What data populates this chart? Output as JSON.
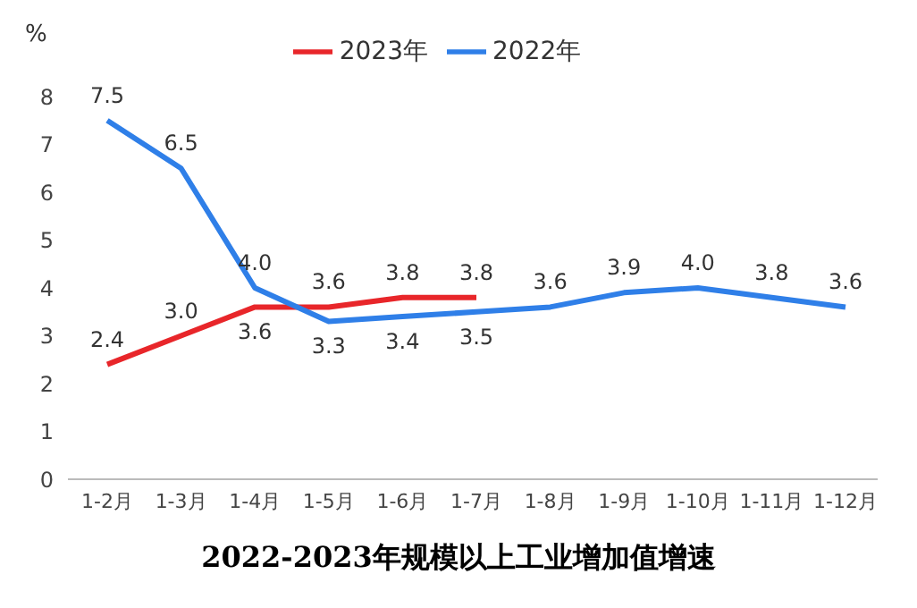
{
  "chart_data": {
    "type": "line",
    "title": "2022-2023年规模以上工业增加值增速",
    "ylabel": "%",
    "categories": [
      "1-2月",
      "1-3月",
      "1-4月",
      "1-5月",
      "1-6月",
      "1-7月",
      "1-8月",
      "1-9月",
      "1-10月",
      "1-11月",
      "1-12月"
    ],
    "series": [
      {
        "name": "2023年",
        "color": "#e8262a",
        "values": [
          2.4,
          3.0,
          3.6,
          3.6,
          3.8,
          3.8,
          null,
          null,
          null,
          null,
          null
        ],
        "value_labels": [
          "2.4",
          "3.0",
          "3.6",
          "3.6",
          "3.8",
          "3.8",
          null,
          null,
          null,
          null,
          null
        ]
      },
      {
        "name": "2022年",
        "color": "#2f7fe8",
        "values": [
          7.5,
          6.5,
          4.0,
          3.3,
          3.4,
          3.5,
          3.6,
          3.9,
          4.0,
          3.8,
          3.6
        ],
        "value_labels": [
          "7.5",
          "6.5",
          "4.0",
          "3.3",
          "3.4",
          "3.5",
          "3.6",
          "3.9",
          "4.0",
          "3.8",
          "3.6"
        ]
      }
    ],
    "ylim": [
      0,
      8
    ],
    "yticks": [
      0,
      1,
      2,
      3,
      4,
      5,
      6,
      7,
      8
    ],
    "grid": false,
    "legend": "top",
    "marker": "none",
    "line_style": "solid"
  }
}
